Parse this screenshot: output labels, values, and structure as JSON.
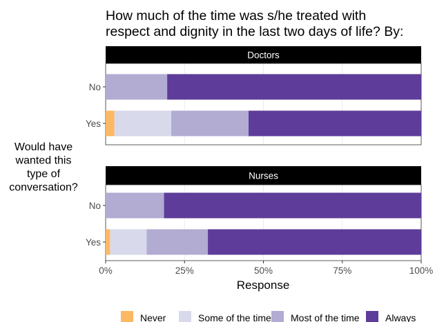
{
  "chart_data": {
    "type": "bar",
    "orientation": "horizontal",
    "stacked": true,
    "title_lines": [
      "How much of the time was s/he treated with",
      "respect and dignity in the last two days of life? By:"
    ],
    "ylabel_lines": [
      "Would have",
      "wanted this",
      "type of",
      "conversation?"
    ],
    "xlabel": "Response",
    "xlim": [
      0,
      100
    ],
    "x_ticks": [
      0,
      25,
      50,
      75,
      100
    ],
    "x_tick_labels": [
      "0%",
      "25%",
      "50%",
      "75%",
      "100%"
    ],
    "grid": true,
    "legend_position": "bottom",
    "categories": [
      "Never",
      "Some of the time",
      "Most of the time",
      "Always"
    ],
    "colors": [
      "#fdb863",
      "#d8daeb",
      "#b2abd2",
      "#5e3c99"
    ],
    "panels": [
      {
        "title": "Doctors",
        "rows": [
          {
            "label": "No",
            "values": [
              0,
              0,
              19.5,
              80.5
            ]
          },
          {
            "label": "Yes",
            "values": [
              2.8,
              18,
              24.5,
              54.7
            ]
          }
        ]
      },
      {
        "title": "Nurses",
        "rows": [
          {
            "label": "No",
            "values": [
              0,
              0,
              18.5,
              81.5
            ]
          },
          {
            "label": "Yes",
            "values": [
              1.4,
              11.6,
              19.4,
              67.6
            ]
          }
        ]
      }
    ]
  }
}
